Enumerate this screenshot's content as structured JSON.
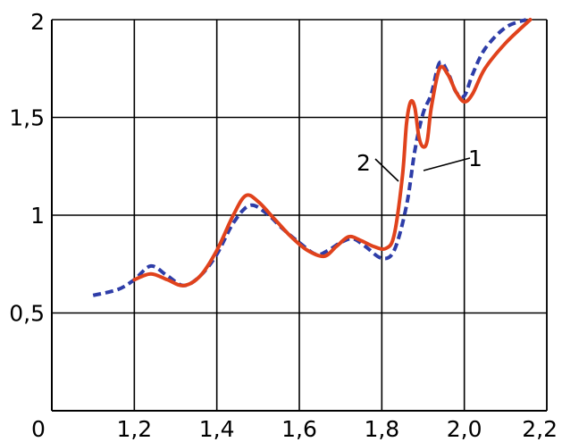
{
  "chart_data": {
    "type": "line",
    "title": "",
    "xlabel": "",
    "ylabel": "",
    "xlim": [
      1.0,
      2.2
    ],
    "ylim": [
      0.0,
      2.0
    ],
    "grid": true,
    "legend": "none",
    "x_ticks": [
      {
        "value": 1.0,
        "label": "0"
      },
      {
        "value": 1.2,
        "label": "1,2"
      },
      {
        "value": 1.4,
        "label": "1,4"
      },
      {
        "value": 1.6,
        "label": "1,6"
      },
      {
        "value": 1.8,
        "label": "1,8"
      },
      {
        "value": 2.0,
        "label": "2,0"
      },
      {
        "value": 2.2,
        "label": "2,2"
      }
    ],
    "y_ticks": [
      {
        "value": 0.5,
        "label": "0,5"
      },
      {
        "value": 1.0,
        "label": "1"
      },
      {
        "value": 1.5,
        "label": "1,5"
      },
      {
        "value": 2.0,
        "label": "2"
      }
    ],
    "series": [
      {
        "name": "",
        "callout": "1",
        "color": "#2e3da8",
        "style": "dashed",
        "points": [
          [
            1.1,
            0.59
          ],
          [
            1.16,
            0.62
          ],
          [
            1.2,
            0.67
          ],
          [
            1.24,
            0.74
          ],
          [
            1.28,
            0.69
          ],
          [
            1.32,
            0.64
          ],
          [
            1.36,
            0.69
          ],
          [
            1.4,
            0.8
          ],
          [
            1.44,
            0.96
          ],
          [
            1.48,
            1.05
          ],
          [
            1.52,
            1.01
          ],
          [
            1.56,
            0.93
          ],
          [
            1.6,
            0.86
          ],
          [
            1.64,
            0.8
          ],
          [
            1.67,
            0.82
          ],
          [
            1.7,
            0.86
          ],
          [
            1.73,
            0.88
          ],
          [
            1.76,
            0.84
          ],
          [
            1.8,
            0.78
          ],
          [
            1.83,
            0.82
          ],
          [
            1.86,
            1.05
          ],
          [
            1.88,
            1.33
          ],
          [
            1.9,
            1.52
          ],
          [
            1.92,
            1.62
          ],
          [
            1.94,
            1.78
          ],
          [
            1.96,
            1.73
          ],
          [
            1.98,
            1.63
          ],
          [
            2.0,
            1.61
          ],
          [
            2.02,
            1.72
          ],
          [
            2.05,
            1.85
          ],
          [
            2.1,
            1.96
          ],
          [
            2.15,
            2.0
          ]
        ]
      },
      {
        "name": "",
        "callout": "2",
        "color": "#e0421c",
        "style": "solid",
        "points": [
          [
            1.2,
            0.67
          ],
          [
            1.24,
            0.7
          ],
          [
            1.28,
            0.67
          ],
          [
            1.32,
            0.64
          ],
          [
            1.36,
            0.69
          ],
          [
            1.4,
            0.82
          ],
          [
            1.44,
            1.0
          ],
          [
            1.47,
            1.1
          ],
          [
            1.5,
            1.07
          ],
          [
            1.54,
            0.98
          ],
          [
            1.58,
            0.89
          ],
          [
            1.62,
            0.82
          ],
          [
            1.66,
            0.79
          ],
          [
            1.69,
            0.84
          ],
          [
            1.72,
            0.89
          ],
          [
            1.75,
            0.87
          ],
          [
            1.78,
            0.84
          ],
          [
            1.81,
            0.83
          ],
          [
            1.83,
            0.9
          ],
          [
            1.85,
            1.2
          ],
          [
            1.86,
            1.47
          ],
          [
            1.87,
            1.58
          ],
          [
            1.88,
            1.55
          ],
          [
            1.89,
            1.4
          ],
          [
            1.9,
            1.35
          ],
          [
            1.91,
            1.38
          ],
          [
            1.92,
            1.55
          ],
          [
            1.94,
            1.75
          ],
          [
            1.96,
            1.72
          ],
          [
            1.98,
            1.63
          ],
          [
            2.0,
            1.58
          ],
          [
            2.02,
            1.62
          ],
          [
            2.05,
            1.75
          ],
          [
            2.1,
            1.88
          ],
          [
            2.16,
            2.0
          ]
        ]
      }
    ]
  }
}
